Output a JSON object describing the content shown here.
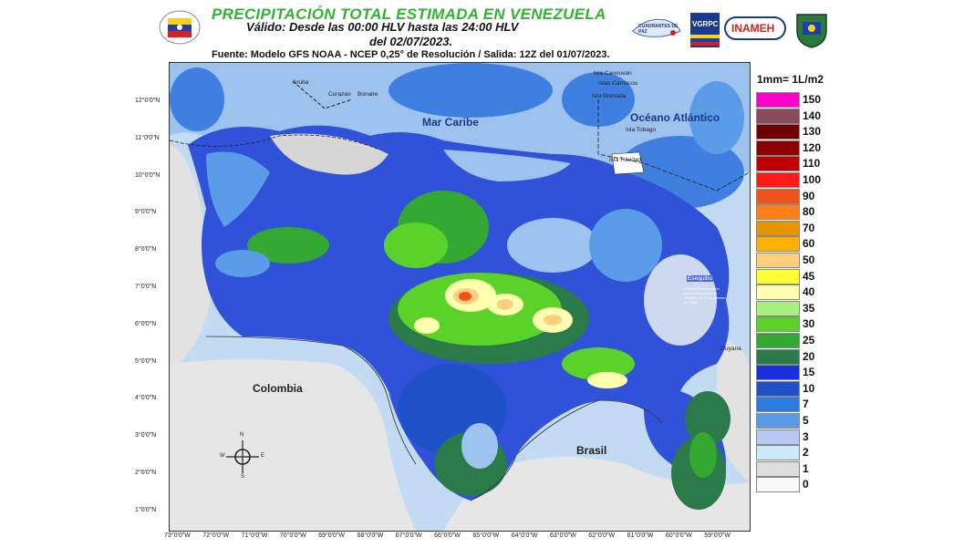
{
  "header": {
    "title": "PRECIPITACIÓN TOTAL ESTIMADA EN VENEZUELA",
    "subtitle_line1": "Válido: Desde las 00:00 HLV  hasta las 24:00 HLV",
    "subtitle_line2": "del 02/07/2023.",
    "source": "Fuente: Modelo GFS NOAA - NCEP 0,25° de Resolución / Salida: 12Z del 01/07/2023."
  },
  "logos": {
    "vgrfc_text": "VGRPC",
    "inameh_text": "INAMEH",
    "ministry_text": "CUADRANTES DE PAZ"
  },
  "map": {
    "latitude_labels": [
      "12°0'0\"N",
      "11°0'0\"N",
      "10°0'0\"N",
      "9°0'0\"N",
      "8°0'0\"N",
      "7°0'0\"N",
      "6°0'0\"N",
      "5°0'0\"N",
      "4°0'0\"N",
      "3°0'0\"N",
      "2°0'0\"N",
      "1°0'0\"N"
    ],
    "longitude_labels": [
      "73°0'0\"W",
      "72°0'0\"W",
      "71°0'0\"W",
      "70°0'0\"W",
      "69°0'0\"W",
      "68°0'0\"W",
      "67°0'0\"W",
      "66°0'0\"W",
      "65°0'0\"W",
      "64°0'0\"W",
      "63°0'0\"W",
      "62°0'0\"W",
      "61°0'0\"W",
      "60°0'0\"W",
      "59°0'0\"W"
    ],
    "places": {
      "mar_caribe": "Mar Caribe",
      "oceano_atlantico": "Océano Atlántico",
      "colombia": "Colombia",
      "brasil": "Brasil",
      "guyana": "Guyana",
      "aruba": "Aruba",
      "curazao": "Curazao",
      "bonaire": "Bonaire",
      "isla_canouvan": "Isla Canouvan",
      "isla_carriacou": "Islas Carriacou",
      "isla_grenada": "Isla Grenada",
      "isla_tobago": "Isla Tobago",
      "isla_trinidad": "Isla Trinidad",
      "esequibo": "Esequibo",
      "esequibo_note": "Zona en Reclamación sujeta al Acuerdo de Ginebra del 17 de febrero de 1966"
    },
    "compass": {
      "n": "N",
      "s": "S",
      "e": "E",
      "w": "W"
    }
  },
  "legend": {
    "unit": "1mm= 1L/m2",
    "items": [
      {
        "label": "150",
        "color": "#ff00cc"
      },
      {
        "label": "140",
        "color": "#8a4a5e"
      },
      {
        "label": "130",
        "color": "#6e0000"
      },
      {
        "label": "120",
        "color": "#8c0000"
      },
      {
        "label": "110",
        "color": "#c00000"
      },
      {
        "label": "100",
        "color": "#ff1a1a"
      },
      {
        "label": "90",
        "color": "#f0521c"
      },
      {
        "label": "80",
        "color": "#ff7f1a"
      },
      {
        "label": "70",
        "color": "#e69500"
      },
      {
        "label": "60",
        "color": "#ffb000"
      },
      {
        "label": "50",
        "color": "#ffcf80"
      },
      {
        "label": "45",
        "color": "#ffff33"
      },
      {
        "label": "40",
        "color": "#ffffb0"
      },
      {
        "label": "35",
        "color": "#a8f080"
      },
      {
        "label": "30",
        "color": "#5ad22a"
      },
      {
        "label": "25",
        "color": "#33a833"
      },
      {
        "label": "20",
        "color": "#2b7a4a"
      },
      {
        "label": "15",
        "color": "#1a2fe0"
      },
      {
        "label": "10",
        "color": "#1f52c8"
      },
      {
        "label": "7",
        "color": "#2c7be0"
      },
      {
        "label": "5",
        "color": "#5a9ce8"
      },
      {
        "label": "3",
        "color": "#b8c8f4"
      },
      {
        "label": "2",
        "color": "#cde8f8"
      },
      {
        "label": "1",
        "color": "#dcdcdc"
      },
      {
        "label": "0",
        "color": "#f8f8f8"
      }
    ]
  }
}
